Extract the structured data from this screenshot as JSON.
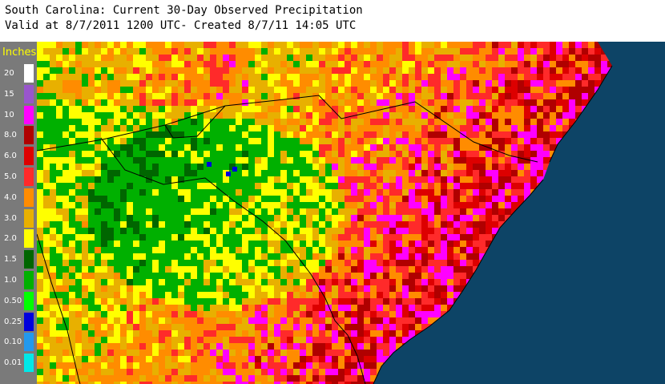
{
  "title_line1": "South Carolina: Current 30-Day Observed Precipitation",
  "title_line2": "Valid at 8/7/2011 1200 UTC- Created 8/7/11 14:05 UTC",
  "legend": {
    "title": "Inches",
    "items": [
      {
        "label": "20",
        "color": "#ffffff"
      },
      {
        "label": "15",
        "color": "#9955cc"
      },
      {
        "label": "10",
        "color": "#ff00ff"
      },
      {
        "label": "8.0",
        "color": "#b00000"
      },
      {
        "label": "6.0",
        "color": "#dd0000"
      },
      {
        "label": "5.0",
        "color": "#ff2a2a"
      },
      {
        "label": "4.0",
        "color": "#ff8c00"
      },
      {
        "label": "3.0",
        "color": "#e8b000"
      },
      {
        "label": "2.0",
        "color": "#ffff00"
      },
      {
        "label": "1.5",
        "color": "#006600"
      },
      {
        "label": "1.0",
        "color": "#00b000"
      },
      {
        "label": "0.50",
        "color": "#00ff00"
      },
      {
        "label": "0.25",
        "color": "#0000dd"
      },
      {
        "label": "0.10",
        "color": "#2299ee"
      },
      {
        "label": "0.01",
        "color": "#00e8e8"
      }
    ]
  },
  "map": {
    "ocean_color": "#0d4466",
    "border_color": "#000000"
  }
}
